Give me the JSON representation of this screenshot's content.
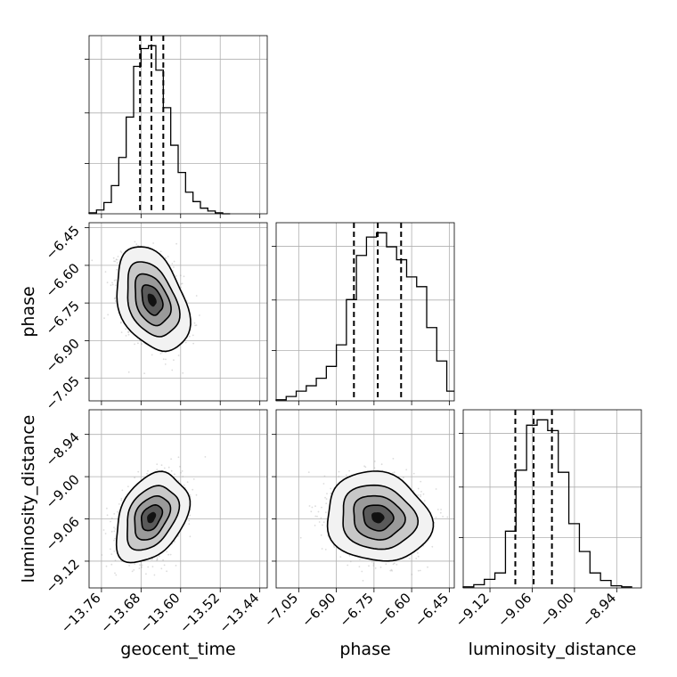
{
  "chart_data": {
    "type": "corner",
    "parameters": [
      "geocent_time",
      "phase",
      "luminosity_distance"
    ],
    "ranges": {
      "geocent_time": [
        -13.785,
        -13.425
      ],
      "phase": [
        -7.14,
        -6.43
      ],
      "luminosity_distance": [
        -9.158,
        -8.905
      ]
    },
    "ticks": {
      "geocent_time": [
        "−13.76",
        "−13.68",
        "−13.60",
        "−13.52",
        "−13.44"
      ],
      "phase": [
        "−7.05",
        "−6.90",
        "−6.75",
        "−6.60",
        "−6.45"
      ],
      "luminosity_distance": [
        "−9.12",
        "−9.06",
        "−9.00",
        "−8.94"
      ]
    },
    "tick_values": {
      "geocent_time": [
        -13.76,
        -13.68,
        -13.6,
        -13.52,
        -13.44
      ],
      "phase": [
        -7.05,
        -6.9,
        -6.75,
        -6.6,
        -6.45
      ],
      "luminosity_distance": [
        -9.12,
        -9.06,
        -9.0,
        -8.94
      ]
    },
    "quantiles": {
      "geocent_time": [
        -13.682,
        -13.659,
        -13.635
      ],
      "phase": [
        -6.83,
        -6.735,
        -6.642
      ],
      "luminosity_distance": [
        -9.084,
        -9.058,
        -9.032
      ]
    },
    "histograms": {
      "geocent_time": {
        "edges": [
          -13.785,
          -13.77,
          -13.755,
          -13.74,
          -13.725,
          -13.71,
          -13.695,
          -13.68,
          -13.665,
          -13.65,
          -13.635,
          -13.62,
          -13.605,
          -13.59,
          -13.575,
          -13.56,
          -13.545,
          -13.53,
          -13.515,
          -13.5
        ],
        "counts": [
          1,
          4,
          12,
          30,
          60,
          103,
          157,
          176,
          179,
          153,
          113,
          73,
          44,
          23,
          13,
          6,
          3,
          1,
          0
        ]
      },
      "phase": {
        "edges": [
          -7.14,
          -7.1,
          -7.06,
          -7.02,
          -6.98,
          -6.94,
          -6.9,
          -6.86,
          -6.82,
          -6.78,
          -6.74,
          -6.7,
          -6.66,
          -6.62,
          -6.58,
          -6.54,
          -6.5,
          -6.46,
          -6.43
        ],
        "counts": [
          1,
          4,
          9,
          14,
          21,
          32,
          52,
          94,
          135,
          152,
          156,
          143,
          131,
          115,
          106,
          68,
          37,
          9
        ]
      },
      "luminosity_distance": {
        "edges": [
          -9.158,
          -9.143,
          -9.128,
          -9.113,
          -9.098,
          -9.083,
          -9.068,
          -9.053,
          -9.038,
          -9.023,
          -9.008,
          -8.993,
          -8.978,
          -8.963,
          -8.948,
          -8.933,
          -8.918
        ],
        "counts": [
          1,
          3,
          8,
          14,
          53,
          110,
          152,
          157,
          147,
          108,
          60,
          34,
          14,
          7,
          2,
          1
        ]
      }
    },
    "pairs": [
      {
        "x": "geocent_time",
        "y": "phase",
        "mean": [
          -13.658,
          -6.738
        ],
        "sd": [
          0.03,
          0.085
        ],
        "corr": -0.35
      },
      {
        "x": "geocent_time",
        "y": "luminosity_distance",
        "mean": [
          -13.659,
          -9.058
        ],
        "sd": [
          0.03,
          0.026
        ],
        "corr": 0.35
      },
      {
        "x": "phase",
        "y": "luminosity_distance",
        "mean": [
          -6.735,
          -9.058
        ],
        "sd": [
          0.085,
          0.026
        ],
        "corr": -0.1
      }
    ],
    "grid": true
  },
  "colors": {
    "ink": "#000000",
    "grid": "#b0b0b0",
    "points": "#9a9a9a"
  }
}
